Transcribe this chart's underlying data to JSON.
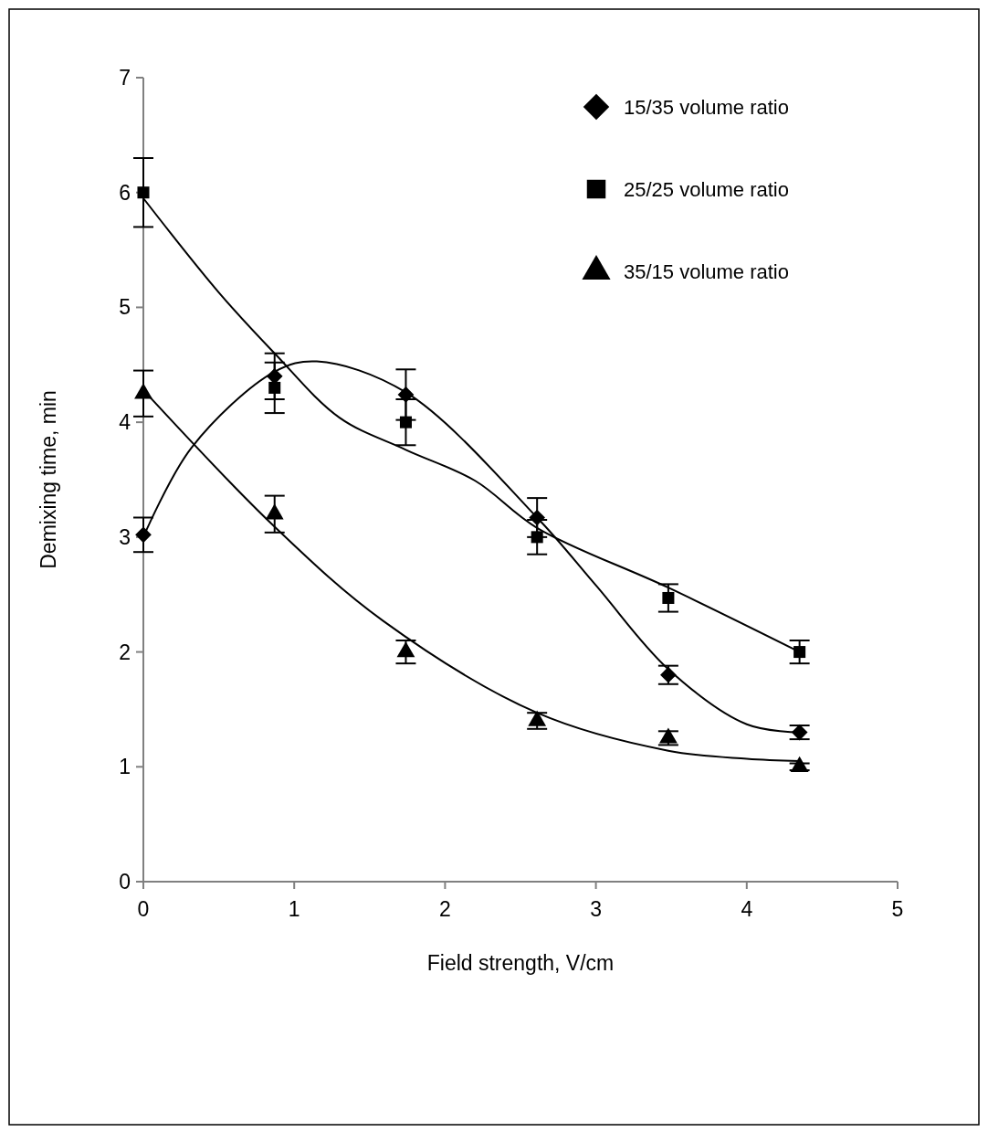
{
  "chart_data": {
    "type": "scatter",
    "xlabel": "Field strength, V/cm",
    "ylabel": "Demixing time, min",
    "xlim": [
      0,
      5
    ],
    "xticks": [
      0,
      1,
      2,
      3,
      4,
      5
    ],
    "ylim": [
      0,
      7
    ],
    "yticks": [
      0,
      1,
      2,
      3,
      4,
      5,
      6,
      7
    ],
    "grid": false,
    "legend": "top right",
    "series": [
      {
        "name": "15/35 volume ratio",
        "marker": "diamond",
        "color": "#000000",
        "x": [
          0,
          0.87,
          1.74,
          2.61,
          3.48,
          4.35
        ],
        "values": [
          3.02,
          4.4,
          4.24,
          3.17,
          1.8,
          1.3
        ],
        "errors": [
          0.15,
          0.2,
          0.22,
          0.17,
          0.08,
          0.06
        ]
      },
      {
        "name": "25/25 volume ratio",
        "marker": "square",
        "color": "#000000",
        "x": [
          0,
          0.87,
          1.74,
          2.61,
          3.48,
          4.35
        ],
        "values": [
          6.0,
          4.3,
          4.0,
          3.0,
          2.47,
          2.0
        ],
        "errors": [
          0.3,
          0.22,
          0.2,
          0.15,
          0.12,
          0.1
        ]
      },
      {
        "name": "35/15 volume ratio",
        "marker": "triangle",
        "color": "#000000",
        "x": [
          0,
          0.87,
          1.74,
          2.61,
          3.48,
          4.35
        ],
        "values": [
          4.25,
          3.2,
          2.0,
          1.4,
          1.25,
          1.0
        ],
        "errors": [
          0.2,
          0.16,
          0.1,
          0.07,
          0.06,
          0.03
        ]
      },
      {
        "type": "line",
        "color": "#000000",
        "x": [
          0,
          0.32,
          0.87,
          1.15,
          1.74,
          2.61,
          3.0,
          3.48,
          4.0,
          4.35
        ],
        "values": [
          3.0,
          3.78,
          4.44,
          4.53,
          4.26,
          3.17,
          2.58,
          1.85,
          1.37,
          1.3
        ]
      },
      {
        "type": "line",
        "color": "#000000",
        "x": [
          0,
          0.5,
          0.87,
          1.3,
          1.74,
          2.2,
          2.61,
          3.48,
          4.35
        ],
        "values": [
          5.95,
          5.13,
          4.6,
          4.04,
          3.76,
          3.49,
          3.08,
          2.56,
          2.0
        ]
      },
      {
        "type": "line",
        "color": "#000000",
        "x": [
          0,
          0.87,
          1.59,
          2.61,
          3.48,
          4.0,
          4.35
        ],
        "values": [
          4.28,
          3.09,
          2.27,
          1.47,
          1.14,
          1.07,
          1.05
        ]
      }
    ]
  }
}
